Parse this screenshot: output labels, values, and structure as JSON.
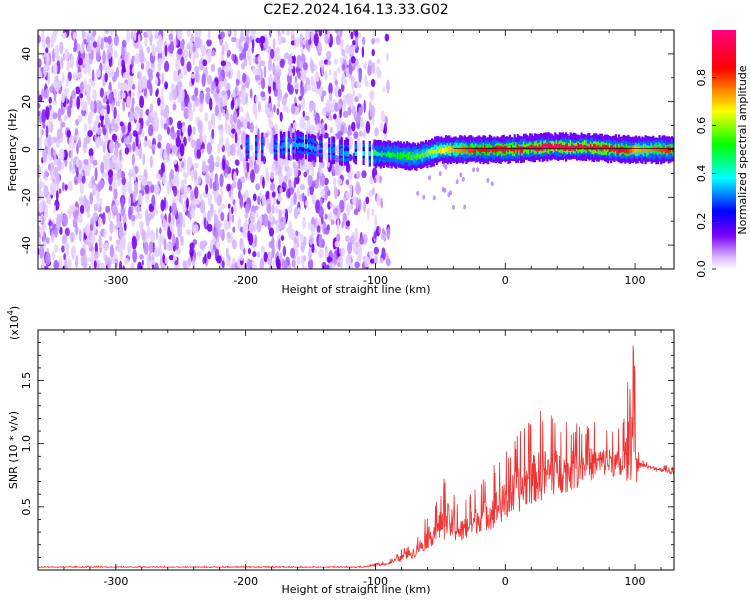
{
  "title": "C2E2.2024.164.13.33.G02",
  "chart_data": [
    {
      "type": "heatmap",
      "xlabel": "Height of straight line (km)",
      "ylabel": "Frequency (Hz)",
      "xlim": [
        -360,
        130
      ],
      "ylim": [
        -50,
        50
      ],
      "x_ticks": [
        -300,
        -200,
        -100,
        0,
        100
      ],
      "y_ticks": [
        -40,
        -20,
        0,
        20,
        40
      ],
      "colorbar": {
        "label": "Normalized spectral amplitude",
        "range": [
          0,
          1
        ],
        "ticks": [
          "0.0",
          "0.2",
          "0.4",
          "0.6",
          "0.8"
        ],
        "tick_values": [
          0,
          0.2,
          0.4,
          0.6,
          0.8
        ],
        "colors": [
          "#ffffff",
          "#7b00ff",
          "#0000ff",
          "#00ffff",
          "#00ff00",
          "#ffff00",
          "#ff0000",
          "#ff0080"
        ]
      },
      "noise_region": {
        "x_range": [
          -360,
          -90
        ],
        "y_range": [
          -50,
          50
        ]
      },
      "signal_band": [
        {
          "x": -200,
          "y": 1,
          "amplitude": 0.3
        },
        {
          "x": -180,
          "y": 1,
          "amplitude": 0.3
        },
        {
          "x": -160,
          "y": 2,
          "amplitude": 0.35
        },
        {
          "x": -130,
          "y": -1,
          "amplitude": 0.3
        },
        {
          "x": -90,
          "y": -2,
          "amplitude": 0.5
        },
        {
          "x": -70,
          "y": -3,
          "amplitude": 0.55
        },
        {
          "x": -50,
          "y": 0,
          "amplitude": 0.65
        },
        {
          "x": -20,
          "y": 0,
          "amplitude": 0.85
        },
        {
          "x": 0,
          "y": 0,
          "amplitude": 0.9
        },
        {
          "x": 30,
          "y": 1,
          "amplitude": 0.95
        },
        {
          "x": 60,
          "y": 1,
          "amplitude": 0.95
        },
        {
          "x": 90,
          "y": 0,
          "amplitude": 0.9
        },
        {
          "x": 100,
          "y": 0,
          "amplitude": 0.7
        },
        {
          "x": 130,
          "y": 0,
          "amplitude": 0.85
        }
      ]
    },
    {
      "type": "line",
      "xlabel": "Height of straight line (km)",
      "ylabel": "SNR (10 * v/v)",
      "yscale_label": "(x10",
      "yscale_exp": "4",
      "xlim": [
        -360,
        130
      ],
      "ylim": [
        0,
        1.9
      ],
      "x_ticks": [
        -300,
        -200,
        -100,
        0,
        100
      ],
      "y_ticks": [
        0.5,
        1.0,
        1.5
      ],
      "y_tick_labels": [
        "0.5",
        "1.0",
        "1.5"
      ],
      "color": "#ee3333",
      "envelope": {
        "x": [
          -360,
          -110,
          -90,
          -70,
          -55,
          -45,
          -35,
          -20,
          -10,
          0,
          10,
          20,
          30,
          40,
          50,
          60,
          70,
          80,
          90,
          98,
          100,
          103,
          106,
          110,
          120,
          130
        ],
        "base": [
          0.02,
          0.02,
          0.04,
          0.1,
          0.2,
          0.25,
          0.2,
          0.3,
          0.32,
          0.38,
          0.45,
          0.52,
          0.55,
          0.6,
          0.62,
          0.68,
          0.72,
          0.75,
          0.7,
          0.7,
          0.6,
          0.8,
          0.82,
          0.8,
          0.78,
          0.75
        ],
        "peak": [
          0.03,
          0.03,
          0.08,
          0.25,
          0.55,
          0.78,
          0.55,
          0.7,
          0.85,
          0.95,
          1.1,
          1.22,
          1.3,
          1.25,
          1.2,
          1.2,
          1.18,
          1.15,
          1.12,
          1.85,
          1.55,
          0.9,
          0.88,
          0.85,
          0.84,
          0.82
        ]
      }
    }
  ]
}
